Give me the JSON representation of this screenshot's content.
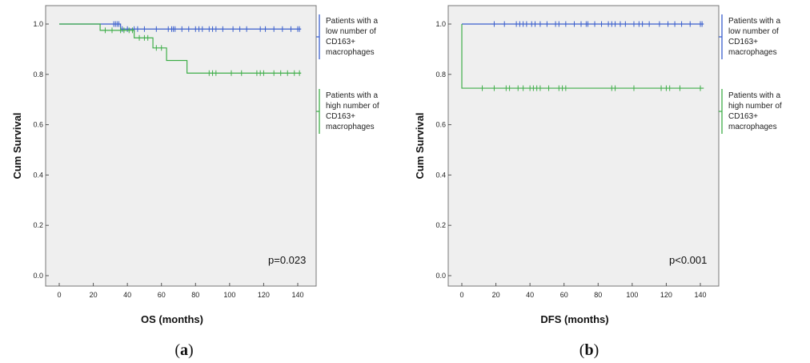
{
  "colors": {
    "low": "#3a5fcd",
    "high": "#3fae49",
    "plot_bg": "#efefef",
    "axis": "#555555"
  },
  "chart_data": [
    {
      "type": "line",
      "panel_label": "a",
      "xlabel": "OS (months)",
      "ylabel": "Cum Survival",
      "xlim": [
        0,
        140
      ],
      "ylim": [
        0.0,
        1.0
      ],
      "xticks": [
        0,
        20,
        40,
        60,
        80,
        100,
        120,
        140
      ],
      "yticks": [
        0.0,
        0.2,
        0.4,
        0.6,
        0.8,
        1.0
      ],
      "annotation": "p=0.023",
      "grid": false,
      "legend_position": "right",
      "series": [
        {
          "name": "Patients with a low number of CD163+ macrophages",
          "color_key": "low",
          "steps": [
            [
              0,
              1.0
            ],
            [
              36,
              1.0
            ],
            [
              36,
              0.98
            ],
            [
              142,
              0.98
            ]
          ],
          "censors": [
            [
              32,
              1.0
            ],
            [
              33,
              1.0
            ],
            [
              34,
              1.0
            ],
            [
              35,
              1.0
            ],
            [
              37,
              0.98
            ],
            [
              40,
              0.98
            ],
            [
              44,
              0.98
            ],
            [
              46,
              0.98
            ],
            [
              50,
              0.98
            ],
            [
              57,
              0.98
            ],
            [
              64,
              0.98
            ],
            [
              66,
              0.98
            ],
            [
              67,
              0.98
            ],
            [
              68,
              0.98
            ],
            [
              72,
              0.98
            ],
            [
              76,
              0.98
            ],
            [
              80,
              0.98
            ],
            [
              82,
              0.98
            ],
            [
              84,
              0.98
            ],
            [
              88,
              0.98
            ],
            [
              90,
              0.98
            ],
            [
              92,
              0.98
            ],
            [
              96,
              0.98
            ],
            [
              102,
              0.98
            ],
            [
              106,
              0.98
            ],
            [
              110,
              0.98
            ],
            [
              118,
              0.98
            ],
            [
              121,
              0.98
            ],
            [
              126,
              0.98
            ],
            [
              131,
              0.98
            ],
            [
              136,
              0.98
            ],
            [
              140,
              0.98
            ],
            [
              141,
              0.98
            ]
          ]
        },
        {
          "name": "Patients with a high number of CD163+ macrophages",
          "color_key": "high",
          "steps": [
            [
              0,
              1.0
            ],
            [
              24,
              1.0
            ],
            [
              24,
              0.975
            ],
            [
              44,
              0.975
            ],
            [
              44,
              0.945
            ],
            [
              55,
              0.945
            ],
            [
              55,
              0.905
            ],
            [
              63,
              0.905
            ],
            [
              63,
              0.855
            ],
            [
              75,
              0.855
            ],
            [
              75,
              0.805
            ],
            [
              142,
              0.805
            ]
          ],
          "censors": [
            [
              27,
              0.975
            ],
            [
              31,
              0.975
            ],
            [
              36,
              0.975
            ],
            [
              38,
              0.975
            ],
            [
              41,
              0.975
            ],
            [
              43,
              0.975
            ],
            [
              47,
              0.945
            ],
            [
              50,
              0.945
            ],
            [
              52,
              0.945
            ],
            [
              57,
              0.905
            ],
            [
              60,
              0.905
            ],
            [
              88,
              0.805
            ],
            [
              90,
              0.805
            ],
            [
              92,
              0.805
            ],
            [
              101,
              0.805
            ],
            [
              107,
              0.805
            ],
            [
              116,
              0.805
            ],
            [
              118,
              0.805
            ],
            [
              120,
              0.805
            ],
            [
              126,
              0.805
            ],
            [
              130,
              0.805
            ],
            [
              134,
              0.805
            ],
            [
              138,
              0.805
            ],
            [
              141,
              0.805
            ]
          ]
        }
      ]
    },
    {
      "type": "line",
      "panel_label": "b",
      "xlabel": "DFS (months)",
      "ylabel": "Cum Survival",
      "xlim": [
        0,
        140
      ],
      "ylim": [
        0.0,
        1.0
      ],
      "xticks": [
        0,
        20,
        40,
        60,
        80,
        100,
        120,
        140
      ],
      "yticks": [
        0.0,
        0.2,
        0.4,
        0.6,
        0.8,
        1.0
      ],
      "annotation": "p<0.001",
      "grid": false,
      "legend_position": "right",
      "series": [
        {
          "name": "Patients with a low number of CD163+ macrophages",
          "color_key": "low",
          "steps": [
            [
              0,
              1.0
            ],
            [
              142,
              1.0
            ]
          ],
          "censors": [
            [
              19,
              1.0
            ],
            [
              25,
              1.0
            ],
            [
              32,
              1.0
            ],
            [
              34,
              1.0
            ],
            [
              36,
              1.0
            ],
            [
              38,
              1.0
            ],
            [
              41,
              1.0
            ],
            [
              43,
              1.0
            ],
            [
              46,
              1.0
            ],
            [
              50,
              1.0
            ],
            [
              55,
              1.0
            ],
            [
              57,
              1.0
            ],
            [
              61,
              1.0
            ],
            [
              66,
              1.0
            ],
            [
              70,
              1.0
            ],
            [
              73,
              1.0
            ],
            [
              74,
              1.0
            ],
            [
              78,
              1.0
            ],
            [
              82,
              1.0
            ],
            [
              86,
              1.0
            ],
            [
              88,
              1.0
            ],
            [
              90,
              1.0
            ],
            [
              93,
              1.0
            ],
            [
              96,
              1.0
            ],
            [
              101,
              1.0
            ],
            [
              104,
              1.0
            ],
            [
              106,
              1.0
            ],
            [
              110,
              1.0
            ],
            [
              116,
              1.0
            ],
            [
              121,
              1.0
            ],
            [
              125,
              1.0
            ],
            [
              129,
              1.0
            ],
            [
              134,
              1.0
            ],
            [
              140,
              1.0
            ],
            [
              141,
              1.0
            ]
          ]
        },
        {
          "name": "Patients with a high number of CD163+ macrophages",
          "color_key": "high",
          "steps": [
            [
              0,
              1.0
            ],
            [
              0,
              0.745
            ],
            [
              142,
              0.745
            ]
          ],
          "censors": [
            [
              12,
              0.745
            ],
            [
              19,
              0.745
            ],
            [
              26,
              0.745
            ],
            [
              28,
              0.745
            ],
            [
              33,
              0.745
            ],
            [
              36,
              0.745
            ],
            [
              40,
              0.745
            ],
            [
              42,
              0.745
            ],
            [
              44,
              0.745
            ],
            [
              46,
              0.745
            ],
            [
              51,
              0.745
            ],
            [
              57,
              0.745
            ],
            [
              59,
              0.745
            ],
            [
              61,
              0.745
            ],
            [
              88,
              0.745
            ],
            [
              90,
              0.745
            ],
            [
              101,
              0.745
            ],
            [
              117,
              0.745
            ],
            [
              120,
              0.745
            ],
            [
              122,
              0.745
            ],
            [
              128,
              0.745
            ],
            [
              140,
              0.745
            ]
          ]
        }
      ]
    }
  ]
}
